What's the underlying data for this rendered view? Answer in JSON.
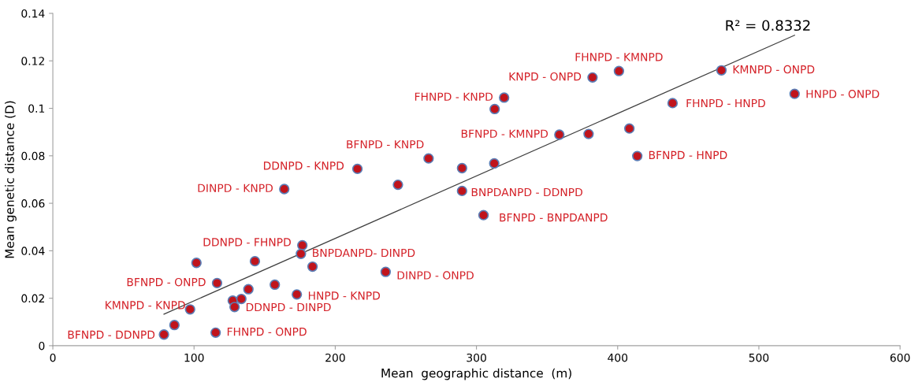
{
  "chart_data": {
    "type": "scatter",
    "xlabel": "Mean  geographic distance  (m)",
    "ylabel": "Mean genetic distance (D)",
    "xlim": [
      0,
      600
    ],
    "xticks": [
      0,
      100,
      200,
      300,
      400,
      500,
      600
    ],
    "ylim": [
      0,
      0.14
    ],
    "yticks": [
      0,
      0.02,
      0.04,
      0.06,
      0.08,
      0.1,
      0.12,
      0.14
    ],
    "grid": false,
    "series": [
      {
        "type": "line",
        "color": "#404040",
        "x": [
          78.7,
          525.3
        ],
        "values": [
          0.0133,
          0.1308
        ]
      },
      {
        "color": "#c0141c",
        "marker": "circle",
        "x": [
          78.7,
          86.1,
          97.2,
          101.7,
          116.3,
          115.3,
          127.4,
          128.7,
          133.5,
          138.5,
          143.1,
          157.2,
          172.8,
          176.7,
          175.7,
          183.9,
          163.9,
          215.7,
          244.4,
          266.1,
          289.8,
          289.8,
          312.6,
          312.9,
          319.6,
          358.7,
          379.4,
          382.2,
          400.9,
          408.3,
          413.9,
          305.0,
          235.7,
          438.9,
          473.5,
          525.3
        ],
        "values": [
          0.0047,
          0.0087,
          0.0153,
          0.0349,
          0.0264,
          0.0055,
          0.019,
          0.0163,
          0.0197,
          0.0238,
          0.0356,
          0.0257,
          0.0216,
          0.0423,
          0.0387,
          0.0333,
          0.066,
          0.0745,
          0.0678,
          0.0789,
          0.0748,
          0.0652,
          0.0768,
          0.0997,
          0.1045,
          0.0889,
          0.0892,
          0.113,
          0.1157,
          0.0915,
          0.0799,
          0.055,
          0.0311,
          0.1022,
          0.116,
          0.1061
        ]
      }
    ],
    "annotations": [
      {
        "text": "FHNPD - KMNPD",
        "x": 400.9,
        "y": 0.1157
      },
      {
        "text": "KNPD - ONPD",
        "x": 382.2,
        "y": 0.113
      },
      {
        "text": "FHNPD - KNPD",
        "x": 319.6,
        "y": 0.1045
      },
      {
        "text": "KMNPD - ONPD",
        "x": 473.5,
        "y": 0.116
      },
      {
        "text": "HNPD - ONPD",
        "x": 525.3,
        "y": 0.1061
      },
      {
        "text": "FHNPD - HNPD",
        "x": 438.9,
        "y": 0.1022
      },
      {
        "text": "BFNPD - KMNPD",
        "x": 358.7,
        "y": 0.0889
      },
      {
        "text": "BFNPD - HNPD",
        "x": 413.9,
        "y": 0.0799
      },
      {
        "text": "BFNPD - KNPD",
        "x": 266.1,
        "y": 0.0789
      },
      {
        "text": "DDNPD - KNPD",
        "x": 215.7,
        "y": 0.0745
      },
      {
        "text": "DINPD - KNPD",
        "x": 163.9,
        "y": 0.066
      },
      {
        "text": "BNPDANPD - DDNPD",
        "x": 289.8,
        "y": 0.0652
      },
      {
        "text": "BFNPD - BNPDANPD",
        "x": 305.0,
        "y": 0.055
      },
      {
        "text": "DDNPD - FHNPD",
        "x": 176.7,
        "y": 0.0423
      },
      {
        "text": "BNPDANPD- DINPD",
        "x": 175.7,
        "y": 0.0387
      },
      {
        "text": "BFNPD - ONPD",
        "x": 116.3,
        "y": 0.0264
      },
      {
        "text": "DINPD - ONPD",
        "x": 235.7,
        "y": 0.0311
      },
      {
        "text": "HNPD - KNPD",
        "x": 172.8,
        "y": 0.0216
      },
      {
        "text": "KMNPD - KNPD",
        "x": 97.2,
        "y": 0.0153
      },
      {
        "text": "DDNPD - DINPD",
        "x": 128.7,
        "y": 0.0163
      },
      {
        "text": "FHNPD - ONPD",
        "x": 115.3,
        "y": 0.0055
      },
      {
        "text": "BFNPD - DDNPD",
        "x": 78.7,
        "y": 0.0047
      },
      "R² = 0.8332"
    ]
  }
}
